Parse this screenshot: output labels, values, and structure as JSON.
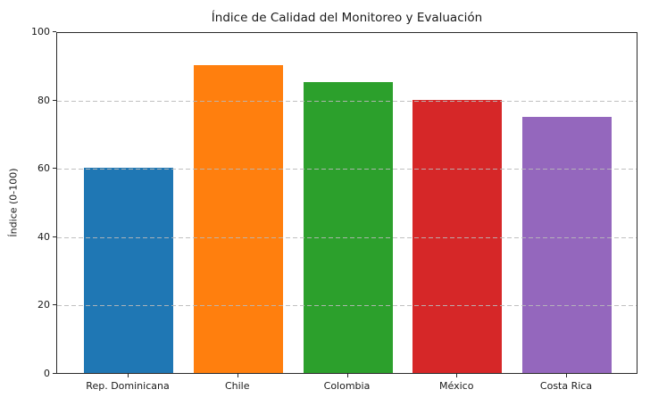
{
  "chart_data": {
    "type": "bar",
    "title": "Índice de Calidad del Monitoreo y Evaluación",
    "xlabel": "",
    "ylabel": "Índice (0-100)",
    "categories": [
      "Rep. Dominicana",
      "Chile",
      "Colombia",
      "México",
      "Costa Rica"
    ],
    "values": [
      60,
      90,
      85,
      80,
      75
    ],
    "bar_colors": [
      "#1f77b4",
      "#ff7f0e",
      "#2ca02c",
      "#d62728",
      "#9467bd"
    ],
    "ylim": [
      0,
      100
    ],
    "yticks": [
      0,
      20,
      40,
      60,
      80,
      100
    ],
    "grid": "horizontal-dashed",
    "grid_color": "#b9b9b9",
    "spine_color": "#2a2a2a",
    "text_color": "#1a1a1a",
    "background_color": "#ffffff",
    "legend": "none"
  }
}
